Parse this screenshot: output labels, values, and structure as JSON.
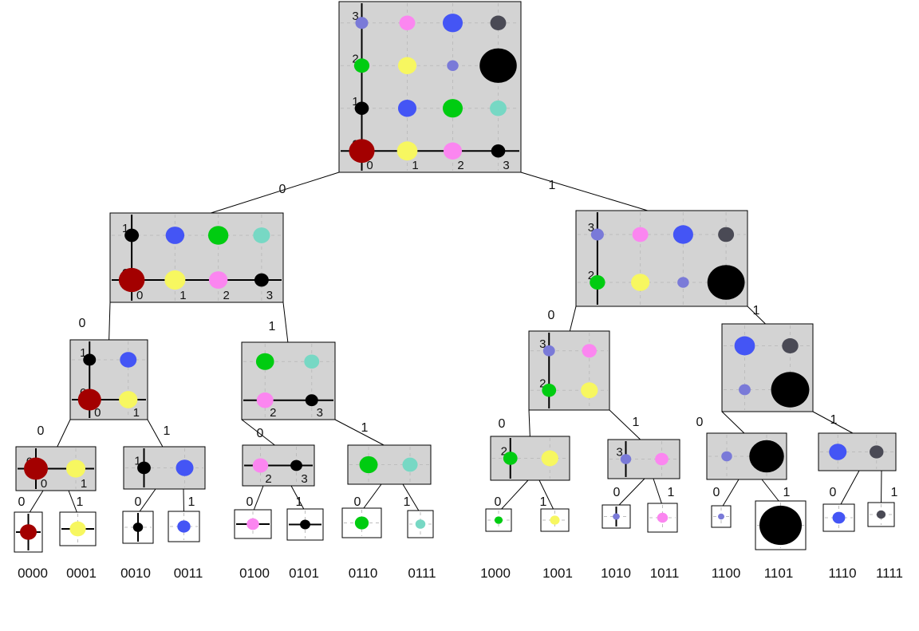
{
  "colors": {
    "red": "#a30000",
    "yellow": "#f7f760",
    "pink": "#fb86f0",
    "black": "#000000",
    "blue": "#4455f5",
    "green": "#00cc11",
    "teal": "#77d8c4",
    "lavender": "#7a7ad8",
    "slate": "#4a4a55",
    "panel": "#d3d3d3"
  },
  "grid": [
    [
      {
        "color": "red",
        "size": 1.0
      },
      {
        "color": "yellow",
        "size": 0.8
      },
      {
        "color": "pink",
        "size": 0.72
      },
      {
        "color": "black",
        "size": 0.55
      }
    ],
    [
      {
        "color": "black",
        "size": 0.55
      },
      {
        "color": "blue",
        "size": 0.72
      },
      {
        "color": "green",
        "size": 0.78
      },
      {
        "color": "teal",
        "size": 0.65
      }
    ],
    [
      {
        "color": "green",
        "size": 0.6
      },
      {
        "color": "yellow",
        "size": 0.72
      },
      {
        "color": "lavender",
        "size": 0.45
      },
      {
        "color": "black",
        "size": 1.45
      }
    ],
    [
      {
        "color": "lavender",
        "size": 0.5
      },
      {
        "color": "pink",
        "size": 0.62
      },
      {
        "color": "blue",
        "size": 0.78
      },
      {
        "color": "slate",
        "size": 0.62
      }
    ]
  ],
  "axis_ticks": [
    "0",
    "1",
    "2",
    "3"
  ],
  "branch_labels": {
    "zero": "0",
    "one": "1"
  },
  "leaf_codes": [
    "0000",
    "0001",
    "0010",
    "0011",
    "0100",
    "0101",
    "0110",
    "0111",
    "1000",
    "1001",
    "1010",
    "1011",
    "1100",
    "1101",
    "1110",
    "1111"
  ]
}
